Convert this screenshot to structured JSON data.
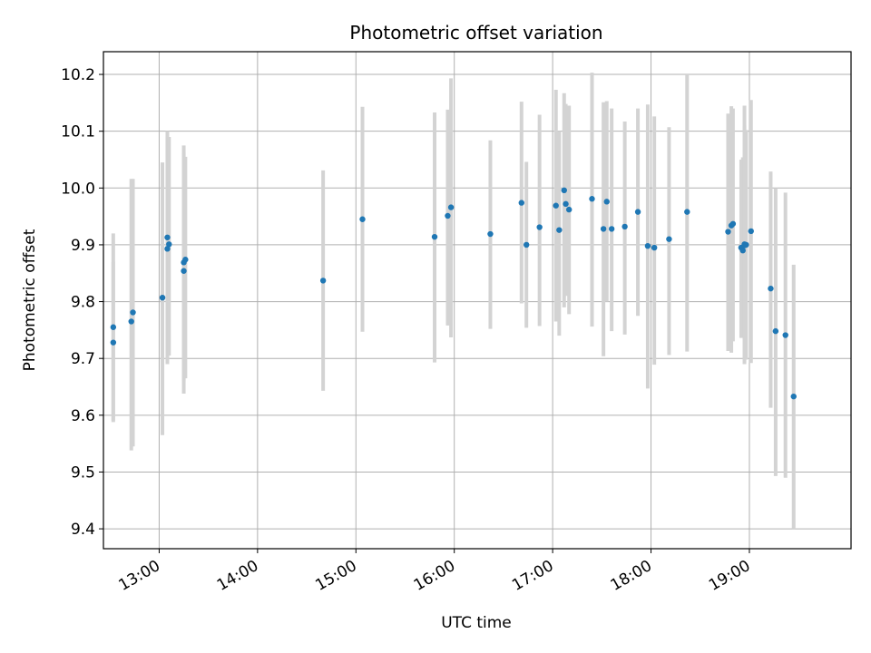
{
  "chart_data": {
    "type": "scatter",
    "title": "Photometric offset variation",
    "xlabel": "UTC time",
    "ylabel": "Photometric offset",
    "x_ticks": [
      "13:00",
      "14:00",
      "15:00",
      "16:00",
      "17:00",
      "18:00",
      "19:00"
    ],
    "y_ticks": [
      "9.4",
      "9.5",
      "9.6",
      "9.7",
      "9.8",
      "9.9",
      "10.0",
      "10.1",
      "10.2"
    ],
    "xlim": [
      "12:26",
      "20:02"
    ],
    "ylim": [
      9.365,
      10.24
    ],
    "grid": true,
    "point_color": "#1f77b4",
    "errorbar_color": "#d3d3d3",
    "series": [
      {
        "x": [
          "12:32",
          "12:32",
          "12:43",
          "12:44",
          "13:02",
          "13:05",
          "13:05",
          "13:06",
          "13:15",
          "13:15",
          "13:16",
          "14:40",
          "15:04",
          "15:48",
          "15:56",
          "15:58",
          "16:22",
          "16:41",
          "16:44",
          "16:52",
          "17:02",
          "17:04",
          "17:07",
          "17:08",
          "17:10",
          "17:24",
          "17:31",
          "17:33",
          "17:36",
          "17:44",
          "17:52",
          "17:58",
          "18:02",
          "18:11",
          "18:22",
          "18:47",
          "18:49",
          "18:50",
          "18:55",
          "18:56",
          "18:57",
          "18:57",
          "18:58",
          "19:01",
          "19:13",
          "19:16",
          "19:22",
          "19:27"
        ],
        "y": [
          9.728,
          9.755,
          9.765,
          9.781,
          9.807,
          9.893,
          9.913,
          9.901,
          9.854,
          9.869,
          9.874,
          9.837,
          9.945,
          9.914,
          9.951,
          9.966,
          9.919,
          9.974,
          9.9,
          9.931,
          9.969,
          9.926,
          9.996,
          9.972,
          9.962,
          9.981,
          9.928,
          9.976,
          9.928,
          9.932,
          9.958,
          9.898,
          9.895,
          9.91,
          9.958,
          9.923,
          9.934,
          9.937,
          9.895,
          9.89,
          9.899,
          9.901,
          9.9,
          9.924,
          9.823,
          9.748,
          9.741,
          9.633
        ],
        "yerr_low": [
          9.588,
          9.59,
          9.538,
          9.545,
          9.565,
          9.69,
          9.71,
          9.705,
          9.638,
          9.66,
          9.665,
          9.643,
          9.747,
          9.693,
          9.758,
          9.737,
          9.752,
          9.797,
          9.754,
          9.757,
          9.765,
          9.74,
          9.79,
          9.81,
          9.778,
          9.756,
          9.704,
          9.8,
          9.748,
          9.742,
          9.775,
          9.647,
          9.689,
          9.706,
          9.712,
          9.713,
          9.71,
          9.73,
          9.736,
          9.737,
          9.69,
          9.7,
          9.698,
          9.692,
          9.613,
          9.493,
          9.49,
          9.4
        ],
        "yerr_high": [
          9.87,
          9.92,
          10.016,
          10.016,
          10.045,
          10.1,
          10.09,
          10.09,
          10.075,
          10.062,
          10.055,
          10.031,
          10.143,
          10.133,
          10.138,
          10.193,
          10.084,
          10.152,
          10.046,
          10.129,
          10.173,
          10.1,
          10.167,
          10.148,
          10.145,
          10.203,
          10.151,
          10.153,
          10.14,
          10.117,
          10.14,
          10.147,
          10.126,
          10.107,
          10.2,
          10.131,
          10.144,
          10.14,
          10.05,
          10.054,
          10.11,
          10.145,
          10.102,
          10.155,
          10.029,
          10.0,
          9.992,
          9.865
        ]
      }
    ]
  }
}
